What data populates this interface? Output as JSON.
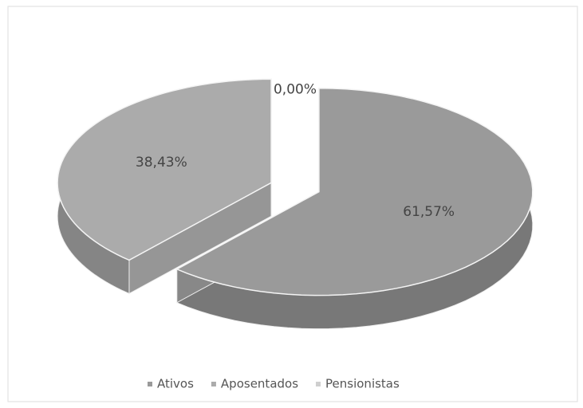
{
  "chart_data": {
    "type": "pie3d",
    "categories": [
      "Ativos",
      "Aposentados",
      "Pensionistas"
    ],
    "values": [
      61.57,
      38.43,
      0.0
    ],
    "value_labels": [
      "61,57%",
      "38,43%",
      "0,00%"
    ],
    "series": [
      {
        "name": "Ativos",
        "color": "#9a9a9a"
      },
      {
        "name": "Aposentados",
        "color": "#ababab"
      },
      {
        "name": "Pensionistas",
        "color": "#cfcfcf"
      }
    ],
    "legend": "bottom"
  }
}
